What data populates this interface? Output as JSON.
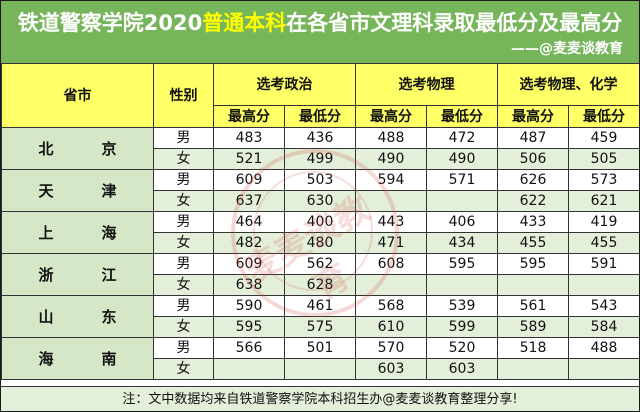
{
  "header": {
    "title_pre": "铁道警察学院2020",
    "title_highlight": "普通本科",
    "title_post": "在各省市文理科录取最低分及最高分",
    "credit": "——@麦麦谈教育"
  },
  "table": {
    "col_province": "省市",
    "col_gender": "性别",
    "groups": [
      "选考政治",
      "选考物理",
      "选考物理、化学"
    ],
    "sub_max": "最高分",
    "sub_min": "最低分",
    "provinces": [
      {
        "c1": "北",
        "c2": "京",
        "rows": [
          {
            "gender": "男",
            "v": [
              "483",
              "436",
              "488",
              "472",
              "487",
              "459"
            ]
          },
          {
            "gender": "女",
            "v": [
              "521",
              "499",
              "490",
              "490",
              "506",
              "505"
            ]
          }
        ]
      },
      {
        "c1": "天",
        "c2": "津",
        "rows": [
          {
            "gender": "男",
            "v": [
              "609",
              "503",
              "594",
              "571",
              "626",
              "573"
            ]
          },
          {
            "gender": "女",
            "v": [
              "637",
              "630",
              "",
              "",
              "622",
              "621"
            ]
          }
        ]
      },
      {
        "c1": "上",
        "c2": "海",
        "rows": [
          {
            "gender": "男",
            "v": [
              "464",
              "400",
              "443",
              "406",
              "433",
              "419"
            ]
          },
          {
            "gender": "女",
            "v": [
              "482",
              "480",
              "471",
              "434",
              "455",
              "455"
            ]
          }
        ]
      },
      {
        "c1": "浙",
        "c2": "江",
        "rows": [
          {
            "gender": "男",
            "v": [
              "609",
              "562",
              "608",
              "595",
              "595",
              "591"
            ]
          },
          {
            "gender": "女",
            "v": [
              "638",
              "628",
              "",
              "",
              "",
              ""
            ]
          }
        ]
      },
      {
        "c1": "山",
        "c2": "东",
        "rows": [
          {
            "gender": "男",
            "v": [
              "590",
              "461",
              "568",
              "539",
              "561",
              "543"
            ]
          },
          {
            "gender": "女",
            "v": [
              "595",
              "575",
              "610",
              "599",
              "589",
              "584"
            ]
          }
        ]
      },
      {
        "c1": "海",
        "c2": "南",
        "rows": [
          {
            "gender": "男",
            "v": [
              "566",
              "501",
              "570",
              "520",
              "518",
              "488"
            ]
          },
          {
            "gender": "女",
            "v": [
              "",
              "",
              "603",
              "603",
              "",
              ""
            ]
          }
        ]
      }
    ]
  },
  "note": "注：文中数据均来自铁道警察学院本科招生办@麦麦谈教育整理分享!",
  "watermark": "麦麦谈教育",
  "colors": {
    "header_bg": "#76b55a",
    "highlight": "#ffff00",
    "header_row_bg": "#ffff66",
    "light_green": "#e3efd9"
  }
}
